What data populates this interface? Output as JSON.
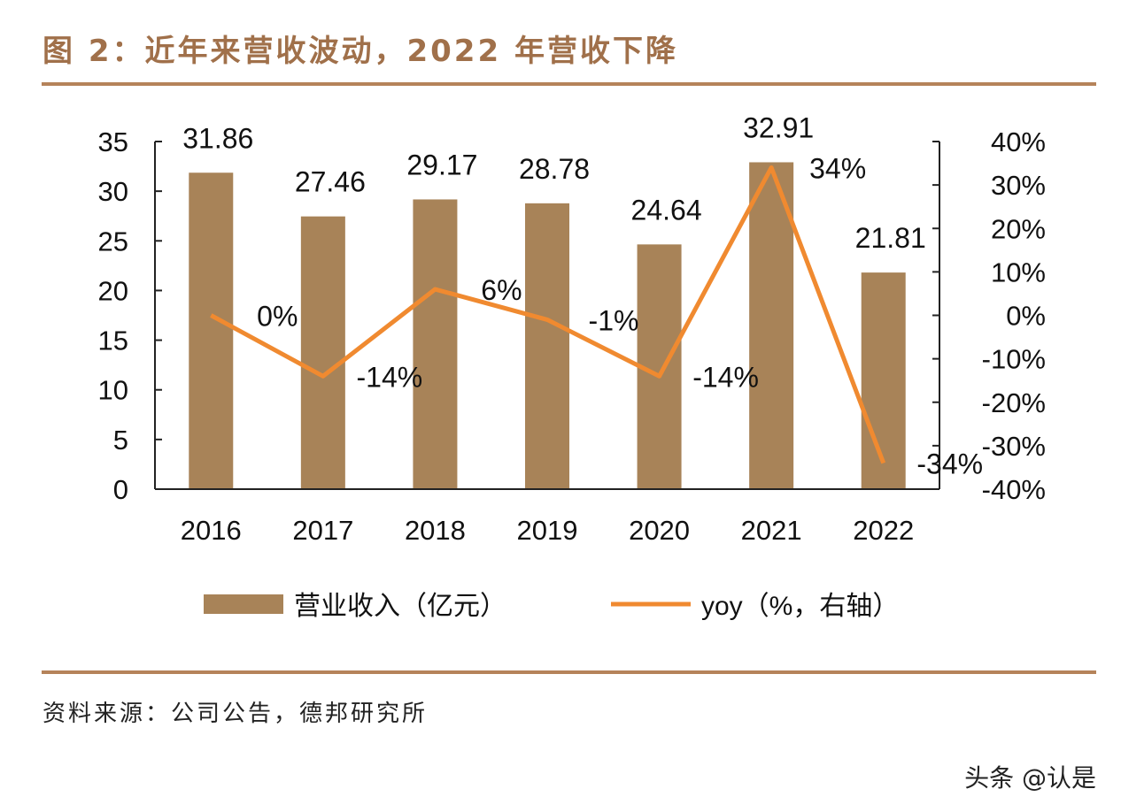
{
  "title": "图 2：近年来营收波动，2022 年营收下降",
  "source": "资料来源：公司公告，德邦研究所",
  "watermark": "头条 @认是",
  "chart_data": {
    "type": "bar+line",
    "categories": [
      "2016",
      "2017",
      "2018",
      "2019",
      "2020",
      "2021",
      "2022"
    ],
    "series": [
      {
        "name": "营业收入（亿元）",
        "type": "bar",
        "axis": "left",
        "color": "#a88358",
        "values": [
          31.86,
          27.46,
          29.17,
          28.78,
          24.64,
          32.91,
          21.81
        ],
        "labels": [
          "31.86",
          "27.46",
          "29.17",
          "28.78",
          "24.64",
          "32.91",
          "21.81"
        ]
      },
      {
        "name": "yoy（%，右轴）",
        "type": "line",
        "axis": "right",
        "color": "#f08a30",
        "values": [
          0,
          -14,
          6,
          -1,
          -14,
          34,
          -34
        ],
        "labels": [
          "0%",
          "-14%",
          "6%",
          "-1%",
          "-14%",
          "34%",
          "-34%"
        ]
      }
    ],
    "left_axis": {
      "ylim": [
        0,
        35
      ],
      "ticks": [
        "0",
        "5",
        "10",
        "15",
        "20",
        "25",
        "30",
        "35"
      ]
    },
    "right_axis": {
      "ylim": [
        -40,
        40
      ],
      "ticks": [
        "-40%",
        "-30%",
        "-20%",
        "-10%",
        "0%",
        "10%",
        "20%",
        "30%",
        "40%"
      ]
    },
    "grid": false,
    "legend_position": "bottom"
  }
}
